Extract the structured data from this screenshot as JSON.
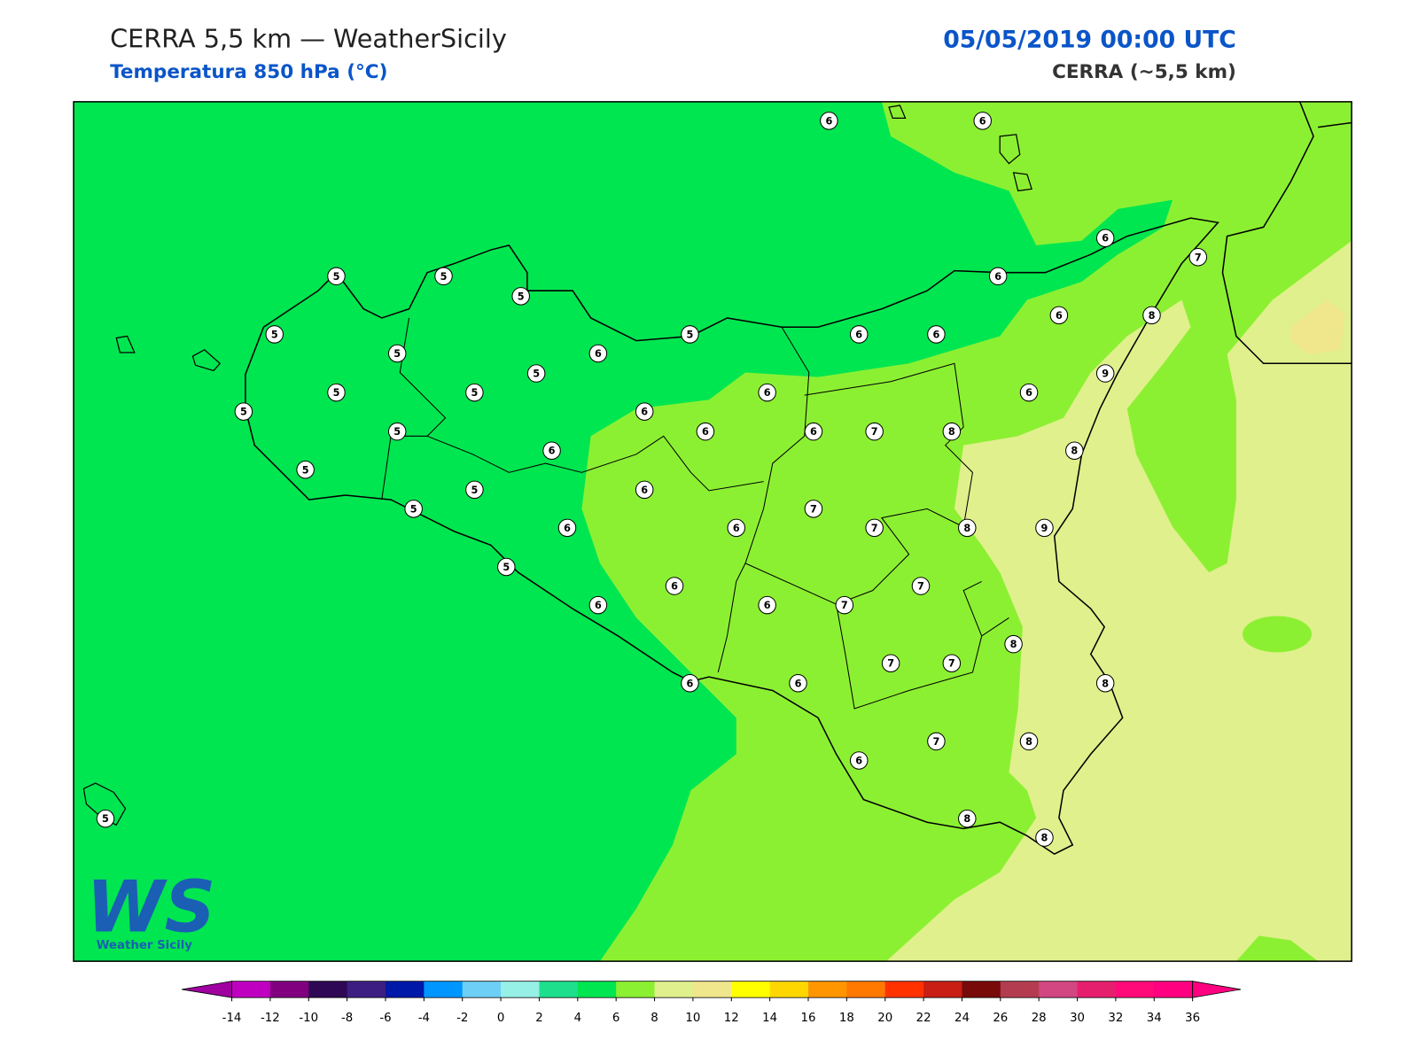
{
  "header": {
    "title": "CERRA 5,5 km — WeatherSicily",
    "subtitle": "Temperatura 850 hPa (°C)",
    "datetime": "05/05/2019 00:00 UTC",
    "model": "CERRA (~5,5 km)"
  },
  "stations": {
    "values": [
      6,
      6,
      6,
      7,
      5,
      5,
      5,
      6,
      5,
      5,
      6,
      6,
      6,
      8,
      5,
      6,
      5,
      9,
      5,
      5,
      6,
      6,
      5,
      6,
      5,
      6,
      6,
      7,
      8,
      6,
      8,
      5,
      5,
      6,
      5,
      7,
      6,
      6,
      7,
      8,
      9,
      5,
      6,
      7,
      6,
      6,
      7,
      8,
      7,
      7,
      8,
      6,
      6,
      7,
      8,
      6,
      8,
      8,
      5
    ]
  },
  "colorbar": {
    "ticks": [
      -14,
      -12,
      -10,
      -8,
      -6,
      -4,
      -2,
      0,
      2,
      4,
      6,
      8,
      10,
      12,
      14,
      16,
      18,
      20,
      22,
      24,
      26,
      28,
      30,
      32,
      34,
      36
    ],
    "colors": [
      "#c000c0",
      "#800080",
      "#2e0854",
      "#3c1e82",
      "#0018a8",
      "#0096ff",
      "#6ecff6",
      "#96f0e6",
      "#1ee08c",
      "#00e650",
      "#8cf032",
      "#e0f08c",
      "#f0e68c",
      "#ffff00",
      "#ffd700",
      "#ff9600",
      "#ff7800",
      "#ff3200",
      "#c81e14",
      "#780a0a",
      "#b43c50",
      "#d24682",
      "#e61e6e",
      "#ff0a78",
      "#ff0080"
    ],
    "extend_colors": [
      "#a000a0",
      "#ff0080"
    ]
  },
  "logo": {
    "mark": "WS",
    "text": "Weather Sicily"
  }
}
